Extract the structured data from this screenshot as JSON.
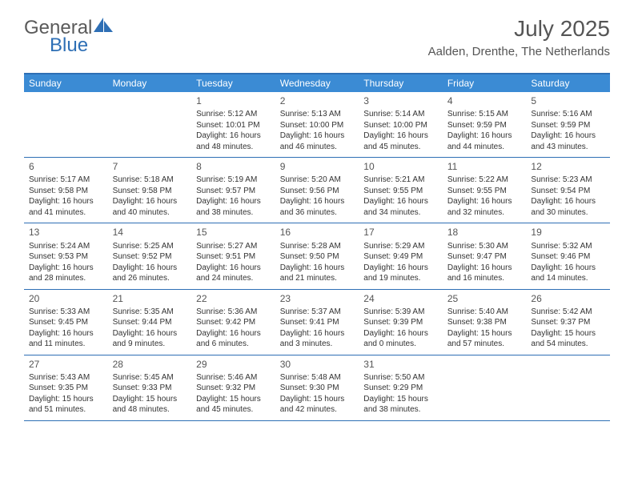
{
  "logo": {
    "general": "General",
    "blue": "Blue"
  },
  "title": "July 2025",
  "location": "Aalden, Drenthe, The Netherlands",
  "day_headers": [
    "Sunday",
    "Monday",
    "Tuesday",
    "Wednesday",
    "Thursday",
    "Friday",
    "Saturday"
  ],
  "colors": {
    "header_bg": "#3b8bd4",
    "border": "#2e6fb5",
    "text": "#333333",
    "title_text": "#555555"
  },
  "weeks": [
    [
      null,
      null,
      {
        "n": "1",
        "sr": "Sunrise: 5:12 AM",
        "ss": "Sunset: 10:01 PM",
        "d1": "Daylight: 16 hours",
        "d2": "and 48 minutes."
      },
      {
        "n": "2",
        "sr": "Sunrise: 5:13 AM",
        "ss": "Sunset: 10:00 PM",
        "d1": "Daylight: 16 hours",
        "d2": "and 46 minutes."
      },
      {
        "n": "3",
        "sr": "Sunrise: 5:14 AM",
        "ss": "Sunset: 10:00 PM",
        "d1": "Daylight: 16 hours",
        "d2": "and 45 minutes."
      },
      {
        "n": "4",
        "sr": "Sunrise: 5:15 AM",
        "ss": "Sunset: 9:59 PM",
        "d1": "Daylight: 16 hours",
        "d2": "and 44 minutes."
      },
      {
        "n": "5",
        "sr": "Sunrise: 5:16 AM",
        "ss": "Sunset: 9:59 PM",
        "d1": "Daylight: 16 hours",
        "d2": "and 43 minutes."
      }
    ],
    [
      {
        "n": "6",
        "sr": "Sunrise: 5:17 AM",
        "ss": "Sunset: 9:58 PM",
        "d1": "Daylight: 16 hours",
        "d2": "and 41 minutes."
      },
      {
        "n": "7",
        "sr": "Sunrise: 5:18 AM",
        "ss": "Sunset: 9:58 PM",
        "d1": "Daylight: 16 hours",
        "d2": "and 40 minutes."
      },
      {
        "n": "8",
        "sr": "Sunrise: 5:19 AM",
        "ss": "Sunset: 9:57 PM",
        "d1": "Daylight: 16 hours",
        "d2": "and 38 minutes."
      },
      {
        "n": "9",
        "sr": "Sunrise: 5:20 AM",
        "ss": "Sunset: 9:56 PM",
        "d1": "Daylight: 16 hours",
        "d2": "and 36 minutes."
      },
      {
        "n": "10",
        "sr": "Sunrise: 5:21 AM",
        "ss": "Sunset: 9:55 PM",
        "d1": "Daylight: 16 hours",
        "d2": "and 34 minutes."
      },
      {
        "n": "11",
        "sr": "Sunrise: 5:22 AM",
        "ss": "Sunset: 9:55 PM",
        "d1": "Daylight: 16 hours",
        "d2": "and 32 minutes."
      },
      {
        "n": "12",
        "sr": "Sunrise: 5:23 AM",
        "ss": "Sunset: 9:54 PM",
        "d1": "Daylight: 16 hours",
        "d2": "and 30 minutes."
      }
    ],
    [
      {
        "n": "13",
        "sr": "Sunrise: 5:24 AM",
        "ss": "Sunset: 9:53 PM",
        "d1": "Daylight: 16 hours",
        "d2": "and 28 minutes."
      },
      {
        "n": "14",
        "sr": "Sunrise: 5:25 AM",
        "ss": "Sunset: 9:52 PM",
        "d1": "Daylight: 16 hours",
        "d2": "and 26 minutes."
      },
      {
        "n": "15",
        "sr": "Sunrise: 5:27 AM",
        "ss": "Sunset: 9:51 PM",
        "d1": "Daylight: 16 hours",
        "d2": "and 24 minutes."
      },
      {
        "n": "16",
        "sr": "Sunrise: 5:28 AM",
        "ss": "Sunset: 9:50 PM",
        "d1": "Daylight: 16 hours",
        "d2": "and 21 minutes."
      },
      {
        "n": "17",
        "sr": "Sunrise: 5:29 AM",
        "ss": "Sunset: 9:49 PM",
        "d1": "Daylight: 16 hours",
        "d2": "and 19 minutes."
      },
      {
        "n": "18",
        "sr": "Sunrise: 5:30 AM",
        "ss": "Sunset: 9:47 PM",
        "d1": "Daylight: 16 hours",
        "d2": "and 16 minutes."
      },
      {
        "n": "19",
        "sr": "Sunrise: 5:32 AM",
        "ss": "Sunset: 9:46 PM",
        "d1": "Daylight: 16 hours",
        "d2": "and 14 minutes."
      }
    ],
    [
      {
        "n": "20",
        "sr": "Sunrise: 5:33 AM",
        "ss": "Sunset: 9:45 PM",
        "d1": "Daylight: 16 hours",
        "d2": "and 11 minutes."
      },
      {
        "n": "21",
        "sr": "Sunrise: 5:35 AM",
        "ss": "Sunset: 9:44 PM",
        "d1": "Daylight: 16 hours",
        "d2": "and 9 minutes."
      },
      {
        "n": "22",
        "sr": "Sunrise: 5:36 AM",
        "ss": "Sunset: 9:42 PM",
        "d1": "Daylight: 16 hours",
        "d2": "and 6 minutes."
      },
      {
        "n": "23",
        "sr": "Sunrise: 5:37 AM",
        "ss": "Sunset: 9:41 PM",
        "d1": "Daylight: 16 hours",
        "d2": "and 3 minutes."
      },
      {
        "n": "24",
        "sr": "Sunrise: 5:39 AM",
        "ss": "Sunset: 9:39 PM",
        "d1": "Daylight: 16 hours",
        "d2": "and 0 minutes."
      },
      {
        "n": "25",
        "sr": "Sunrise: 5:40 AM",
        "ss": "Sunset: 9:38 PM",
        "d1": "Daylight: 15 hours",
        "d2": "and 57 minutes."
      },
      {
        "n": "26",
        "sr": "Sunrise: 5:42 AM",
        "ss": "Sunset: 9:37 PM",
        "d1": "Daylight: 15 hours",
        "d2": "and 54 minutes."
      }
    ],
    [
      {
        "n": "27",
        "sr": "Sunrise: 5:43 AM",
        "ss": "Sunset: 9:35 PM",
        "d1": "Daylight: 15 hours",
        "d2": "and 51 minutes."
      },
      {
        "n": "28",
        "sr": "Sunrise: 5:45 AM",
        "ss": "Sunset: 9:33 PM",
        "d1": "Daylight: 15 hours",
        "d2": "and 48 minutes."
      },
      {
        "n": "29",
        "sr": "Sunrise: 5:46 AM",
        "ss": "Sunset: 9:32 PM",
        "d1": "Daylight: 15 hours",
        "d2": "and 45 minutes."
      },
      {
        "n": "30",
        "sr": "Sunrise: 5:48 AM",
        "ss": "Sunset: 9:30 PM",
        "d1": "Daylight: 15 hours",
        "d2": "and 42 minutes."
      },
      {
        "n": "31",
        "sr": "Sunrise: 5:50 AM",
        "ss": "Sunset: 9:29 PM",
        "d1": "Daylight: 15 hours",
        "d2": "and 38 minutes."
      },
      null,
      null
    ]
  ]
}
